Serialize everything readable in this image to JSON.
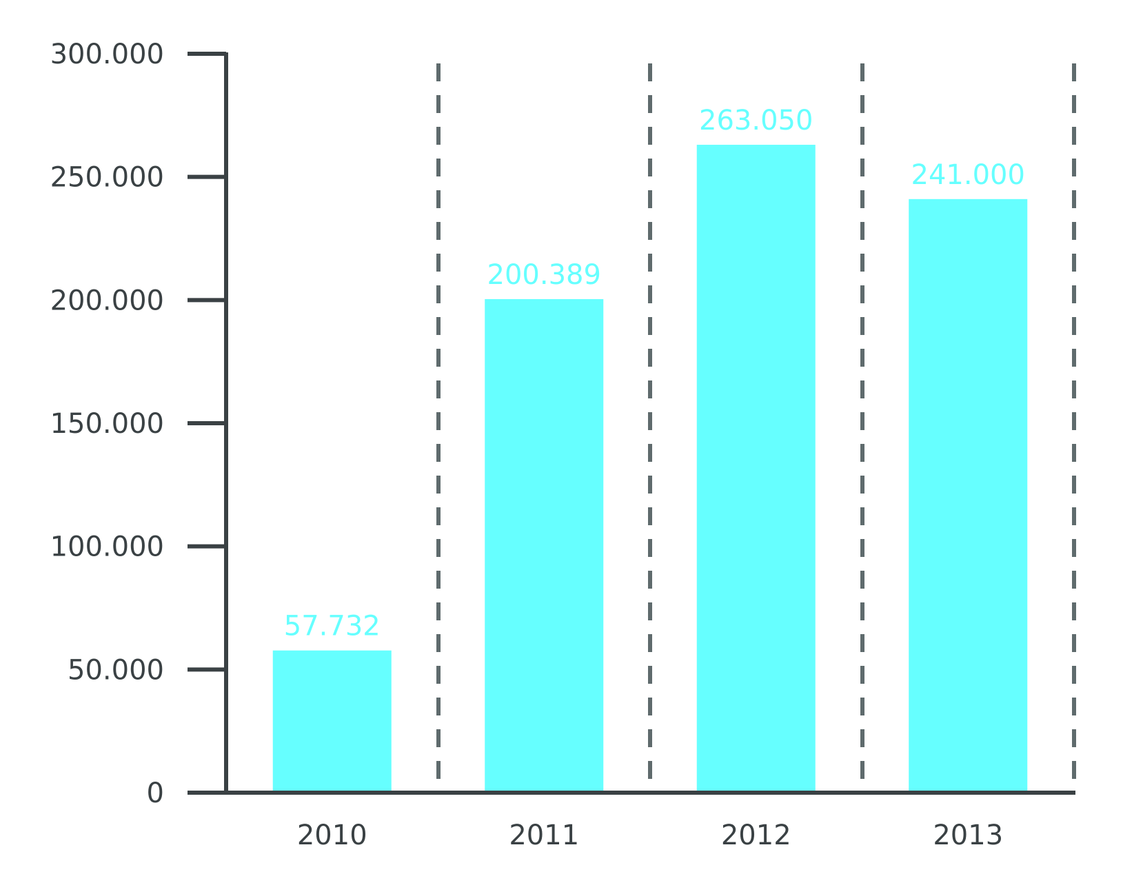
{
  "chart_data": {
    "type": "bar",
    "categories": [
      "2010",
      "2011",
      "2012",
      "2013"
    ],
    "values": [
      57732,
      200389,
      263050,
      241000
    ],
    "value_labels": [
      "57.732",
      "200.389",
      "263.050",
      "241.000"
    ],
    "ylim": [
      0,
      300000
    ],
    "y_ticks": [
      0,
      50000,
      100000,
      150000,
      200000,
      250000,
      300000
    ],
    "y_tick_labels": [
      "0",
      "50.000",
      "100.000",
      "150.000",
      "200.000",
      "250.000",
      "300.000"
    ],
    "xlabel": "",
    "ylabel": "",
    "title": "",
    "grid": "dashed vertical separators between categories",
    "legend": "none",
    "colors": {
      "bar": "#66ffff",
      "data_label": "#66ffff",
      "axis": "#3a4144",
      "separator": "#5f6b6d",
      "text": "#3a4144"
    }
  }
}
